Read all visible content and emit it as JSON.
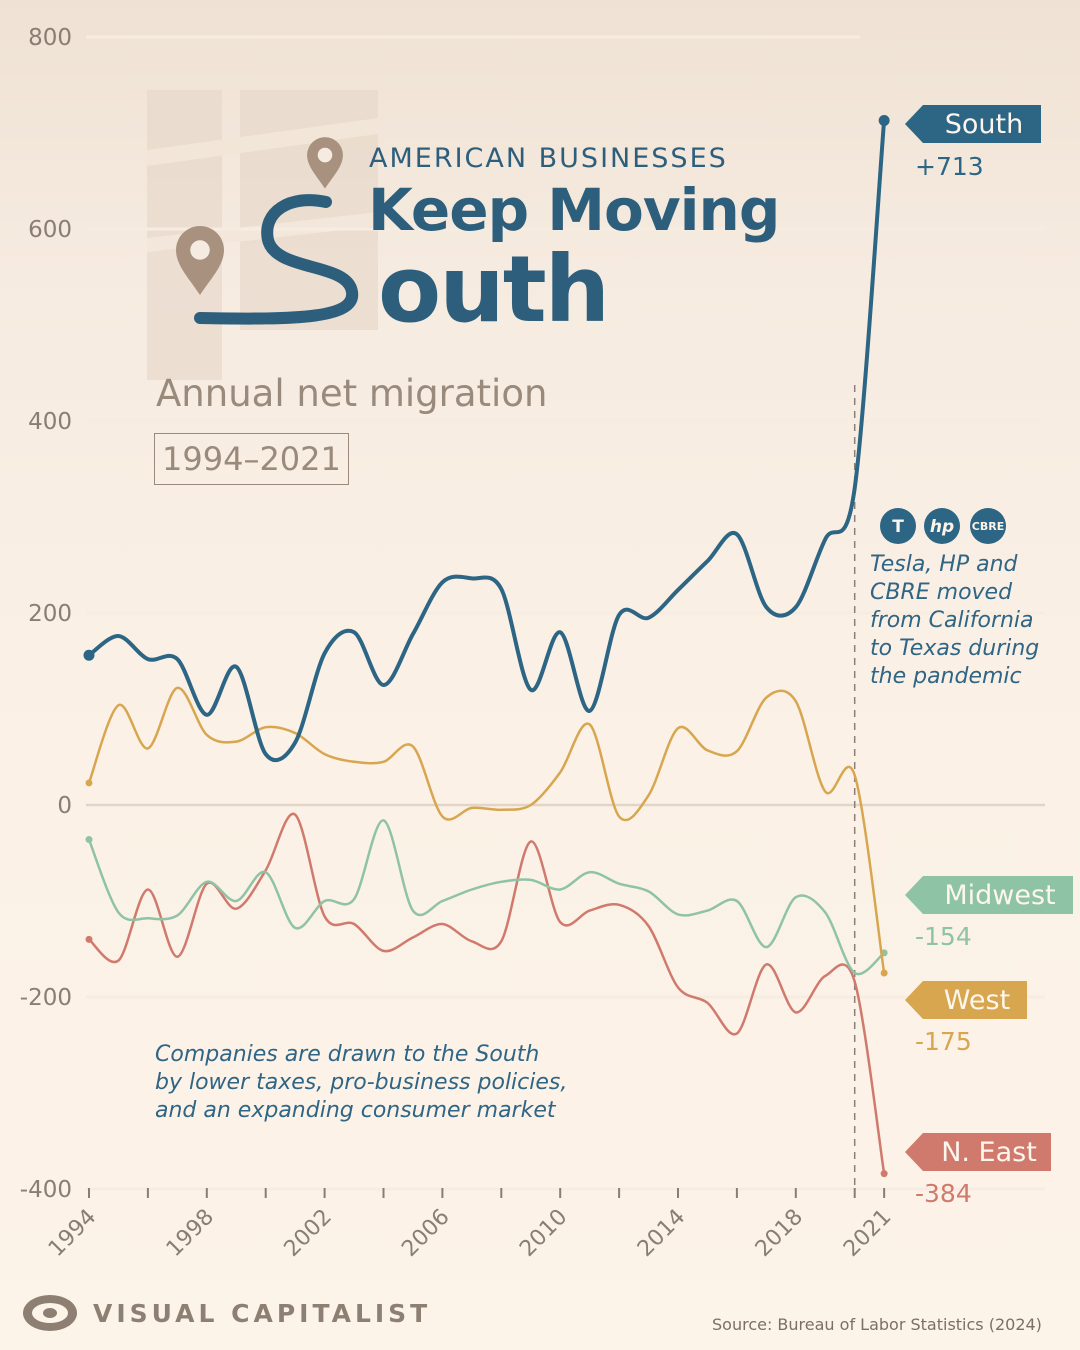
{
  "header": {
    "kicker": "AMERICAN BUSINESSES",
    "headline": "Keep Moving",
    "big_word": "outh",
    "subtitle": "Annual net migration",
    "years": "1994–2021"
  },
  "annotations": {
    "pandemic_note": "Tesla, HP and\nCBRE moved\nfrom California\nto Texas during\nthe pandemic",
    "drivers_note": "Companies are drawn to the South\nby lower taxes, pro-business policies,\nand an expanding consumer market",
    "logos": [
      {
        "icon": "tesla-logo-icon",
        "text": "T"
      },
      {
        "icon": "hp-logo-icon",
        "text": "hp"
      },
      {
        "icon": "cbre-logo-icon",
        "text": "CBRE"
      }
    ]
  },
  "footer": {
    "brand": "VISUAL CAPITALIST",
    "source": "Source: Bureau of Labor Statistics (2024)"
  },
  "colors": {
    "South": "#2d6584",
    "West": "#d7a64f",
    "Midwest": "#8fc3a5",
    "N. East": "#d07a6d",
    "grid": "#efe3d6",
    "tick": "#8a7d72",
    "title": "#2d5f7c"
  },
  "chart_data": {
    "type": "line",
    "x": [
      1994,
      1995,
      1996,
      1997,
      1998,
      1999,
      2000,
      2001,
      2002,
      2003,
      2004,
      2005,
      2006,
      2007,
      2008,
      2009,
      2010,
      2011,
      2012,
      2013,
      2014,
      2015,
      2016,
      2017,
      2018,
      2019,
      2020,
      2021
    ],
    "ylim": [
      -400,
      800
    ],
    "y_ticks": [
      800,
      600,
      400,
      200,
      0,
      -200,
      -400
    ],
    "x_ticks": [
      1994,
      1998,
      2002,
      2006,
      2010,
      2014,
      2018,
      2021
    ],
    "marker_year": 2020,
    "series": [
      {
        "name": "South",
        "end_label": "+713",
        "values": [
          156,
          176,
          152,
          152,
          94,
          144,
          53,
          65,
          158,
          180,
          125,
          178,
          232,
          236,
          225,
          120,
          180,
          98,
          198,
          195,
          224,
          254,
          282,
          206,
          206,
          277,
          330,
          713
        ]
      },
      {
        "name": "West",
        "end_label": "-175",
        "values": [
          23,
          104,
          59,
          122,
          73,
          66,
          81,
          75,
          53,
          45,
          45,
          61,
          -12,
          -3,
          -5,
          0,
          34,
          84,
          -12,
          10,
          80,
          57,
          56,
          112,
          108,
          14,
          31,
          -175
        ]
      },
      {
        "name": "Midwest",
        "end_label": "-154",
        "values": [
          -36,
          -112,
          -118,
          -115,
          -80,
          -100,
          -70,
          -128,
          -100,
          -98,
          -16,
          -110,
          -100,
          -88,
          -80,
          -78,
          -88,
          -70,
          -82,
          -90,
          -114,
          -110,
          -100,
          -148,
          -96,
          -112,
          -175,
          -154
        ]
      },
      {
        "name": "N. East",
        "end_label": "-384",
        "values": [
          -140,
          -162,
          -88,
          -158,
          -82,
          -108,
          -68,
          -10,
          -116,
          -124,
          -152,
          -138,
          -124,
          -142,
          -142,
          -38,
          -122,
          -110,
          -104,
          -126,
          -190,
          -206,
          -238,
          -166,
          -216,
          -178,
          -184,
          -384
        ]
      }
    ]
  }
}
